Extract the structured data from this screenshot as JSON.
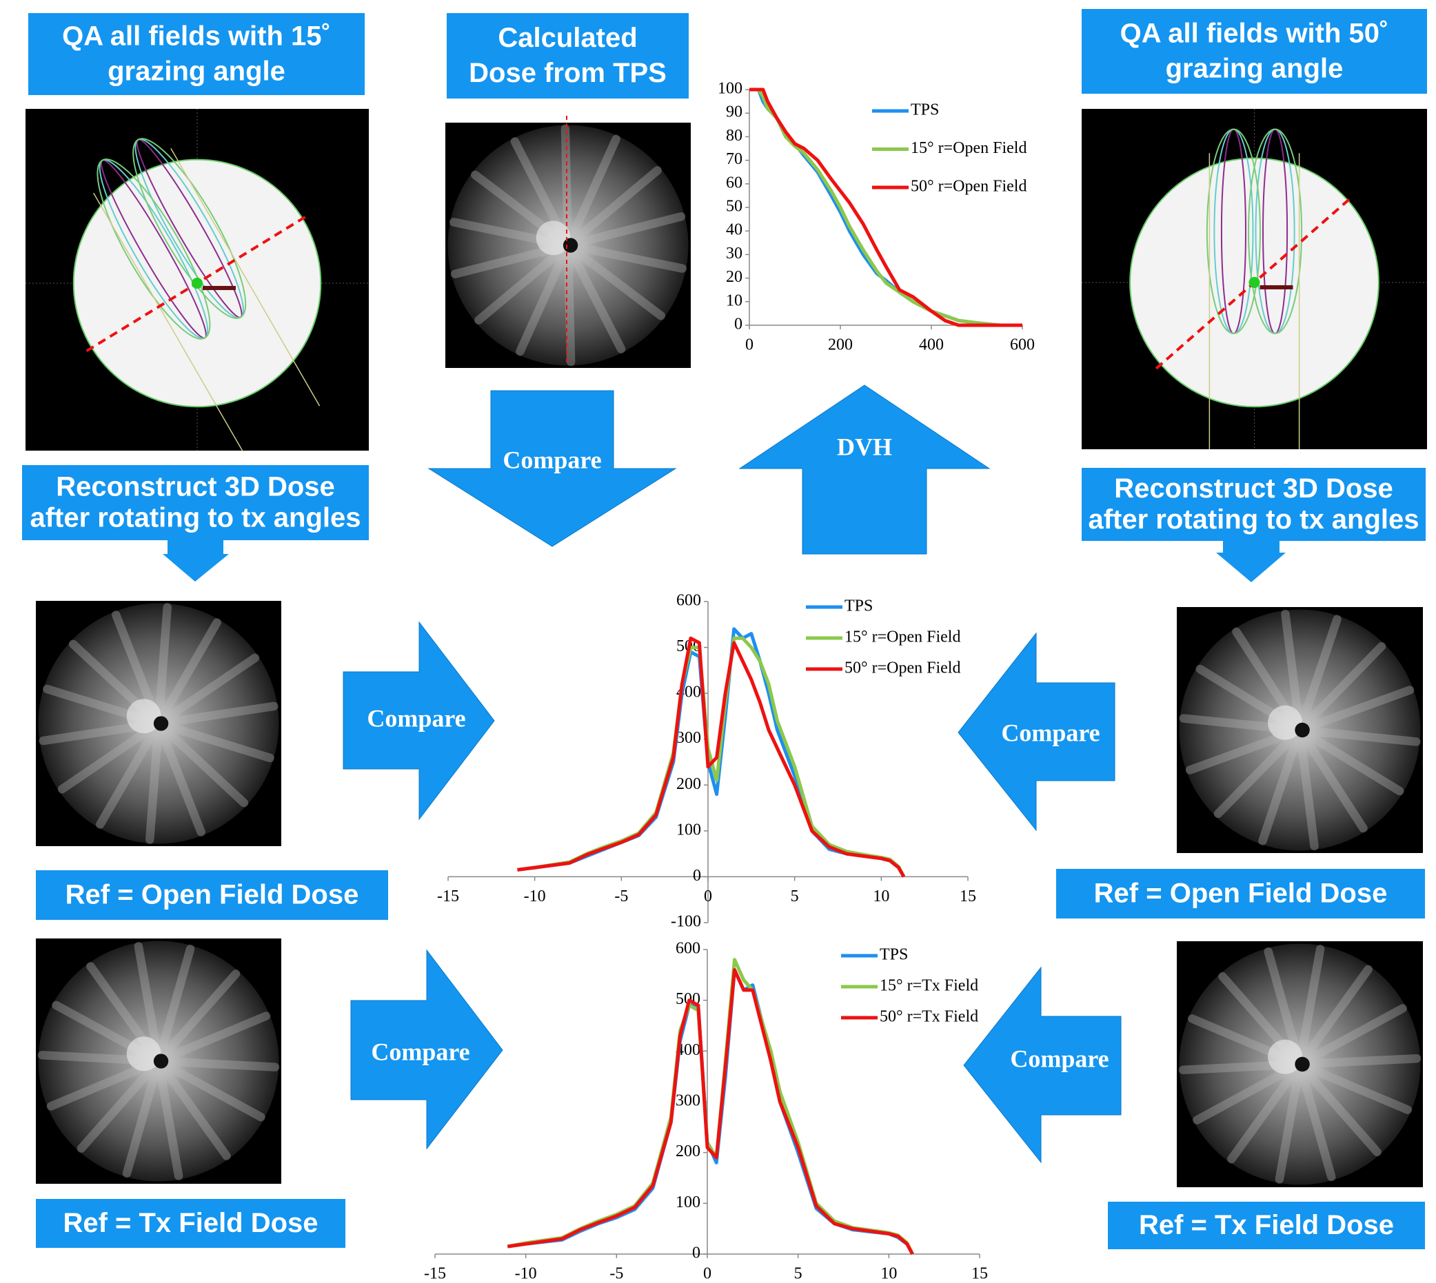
{
  "boxes": [
    {
      "lines": [
        "QA all fields with 15˚",
        "grazing angle"
      ]
    },
    {
      "lines": [
        "Calculated",
        "Dose from TPS"
      ]
    },
    {
      "lines": [
        "QA  all fields with 50˚",
        "grazing angle"
      ]
    },
    {
      "lines": [
        "Reconstruct 3D Dose",
        "after rotating to tx angles"
      ]
    },
    {
      "lines": [
        "Reconstruct 3D Dose",
        "after rotating to tx angles"
      ]
    },
    {
      "lines": [
        "Ref = Open Field Dose"
      ]
    },
    {
      "lines": [
        "Ref = Open Field Dose"
      ]
    },
    {
      "lines": [
        "Ref = Tx Field Dose"
      ]
    },
    {
      "lines": [
        "Ref = Tx Field  Dose"
      ]
    }
  ],
  "arrows": [
    {
      "label": "Compare"
    },
    {
      "label": "DVH"
    },
    {
      "label": "Compare"
    },
    {
      "label": "Compare"
    },
    {
      "label": "Compare"
    },
    {
      "label": "Compare"
    }
  ],
  "chart_data": [
    {
      "type": "line",
      "x": [
        0,
        20,
        30,
        40,
        60,
        80,
        100,
        120,
        150,
        180,
        200,
        220,
        250,
        280,
        300,
        330,
        360,
        400,
        430,
        460,
        500,
        550,
        600
      ],
      "xlim": [
        0,
        600
      ],
      "xticks": [
        0,
        200,
        400,
        600
      ],
      "ylim": [
        0,
        100
      ],
      "yticks": [
        0,
        10,
        20,
        30,
        40,
        50,
        60,
        70,
        80,
        90,
        100
      ],
      "series": [
        {
          "name": "TPS",
          "color": "#1e8ff0",
          "values": [
            100,
            100,
            95,
            92,
            88,
            80,
            77,
            72,
            65,
            55,
            48,
            40,
            30,
            22,
            19,
            14,
            10,
            6,
            4,
            2,
            1,
            0,
            0
          ]
        },
        {
          "name": "15° r=Open Field",
          "color": "#8cc84b",
          "values": [
            100,
            100,
            97,
            92,
            88,
            80,
            76,
            73,
            66,
            57,
            50,
            42,
            32,
            23,
            18,
            14,
            10,
            6,
            4,
            2,
            1,
            0,
            0
          ]
        },
        {
          "name": "50° r=Open Field",
          "color": "#ee1111",
          "values": [
            100,
            100,
            100,
            95,
            88,
            82,
            77,
            75,
            70,
            62,
            57,
            52,
            43,
            32,
            25,
            15,
            12,
            6,
            2,
            0,
            0,
            0,
            0
          ]
        }
      ]
    },
    {
      "type": "line",
      "x": [
        -11,
        -10,
        -8,
        -7,
        -6,
        -5,
        -4,
        -3,
        -2,
        -1.5,
        -1,
        -0.5,
        0,
        0.5,
        1,
        1.5,
        2,
        2.5,
        3,
        3.5,
        4,
        5,
        6,
        7,
        8,
        9,
        10,
        10.5,
        11,
        11.3
      ],
      "xlim": [
        -15,
        15
      ],
      "xticks": [
        -15,
        -10,
        -5,
        0,
        5,
        10,
        15
      ],
      "ylim": [
        -100,
        600
      ],
      "yticks": [
        -100,
        0,
        100,
        200,
        300,
        400,
        500,
        600
      ],
      "series": [
        {
          "name": "TPS",
          "color": "#1e8ff0",
          "values": [
            15,
            20,
            30,
            45,
            60,
            75,
            90,
            130,
            250,
            400,
            490,
            480,
            250,
            180,
            350,
            540,
            520,
            530,
            470,
            400,
            320,
            220,
            100,
            60,
            50,
            45,
            40,
            35,
            20,
            0
          ]
        },
        {
          "name": "15° r=Open Field",
          "color": "#8cc84b",
          "values": [
            15,
            20,
            32,
            50,
            65,
            78,
            95,
            140,
            270,
            420,
            500,
            500,
            280,
            210,
            380,
            520,
            520,
            500,
            470,
            420,
            340,
            240,
            110,
            70,
            55,
            48,
            42,
            38,
            22,
            0
          ]
        },
        {
          "name": "50° r=Open Field",
          "color": "#ee1111",
          "values": [
            15,
            20,
            30,
            48,
            62,
            75,
            92,
            135,
            260,
            420,
            520,
            510,
            240,
            260,
            400,
            510,
            470,
            430,
            380,
            320,
            280,
            200,
            100,
            65,
            50,
            45,
            40,
            35,
            20,
            0
          ]
        }
      ]
    },
    {
      "type": "line",
      "x": [
        -11,
        -10,
        -8,
        -7,
        -6,
        -5,
        -4,
        -3,
        -2,
        -1.5,
        -1,
        -0.5,
        0,
        0.5,
        1,
        1.5,
        2,
        2.5,
        3,
        3.5,
        4,
        5,
        6,
        7,
        8,
        9,
        10,
        10.5,
        11,
        11.3
      ],
      "xlim": [
        -15,
        15
      ],
      "xticks": [
        -15,
        -10,
        -5,
        0,
        5,
        10,
        15
      ],
      "ylim": [
        0,
        600
      ],
      "yticks": [
        0,
        100,
        200,
        300,
        400,
        500,
        600
      ],
      "series": [
        {
          "name": "TPS",
          "color": "#1e8ff0",
          "values": [
            15,
            20,
            28,
            45,
            60,
            72,
            88,
            130,
            260,
            420,
            490,
            490,
            220,
            180,
            350,
            560,
            520,
            530,
            460,
            380,
            300,
            200,
            90,
            60,
            48,
            44,
            40,
            33,
            20,
            0
          ]
        },
        {
          "name": "15° r=Tx Field",
          "color": "#8cc84b",
          "values": [
            15,
            22,
            32,
            50,
            65,
            78,
            95,
            140,
            270,
            440,
            490,
            480,
            220,
            190,
            380,
            580,
            540,
            520,
            460,
            400,
            320,
            220,
            100,
            65,
            52,
            47,
            42,
            37,
            22,
            0
          ]
        },
        {
          "name": "50° r=Tx Field",
          "color": "#ee1111",
          "values": [
            15,
            20,
            30,
            48,
            62,
            75,
            92,
            135,
            260,
            430,
            500,
            490,
            210,
            190,
            370,
            560,
            520,
            520,
            450,
            380,
            300,
            210,
            95,
            60,
            50,
            45,
            40,
            35,
            20,
            0
          ]
        }
      ]
    }
  ]
}
